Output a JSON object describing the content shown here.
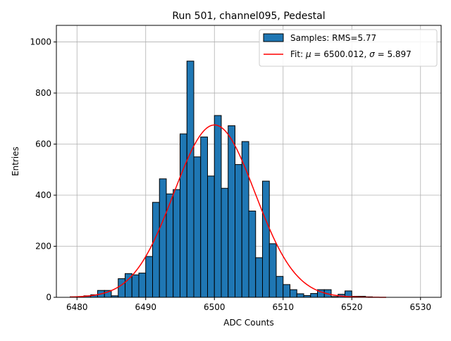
{
  "chart_data": {
    "type": "bar",
    "title": "Run 501, channel095, Pedestal",
    "xlabel": "ADC Counts",
    "ylabel": "Entries",
    "xlim": [
      6477,
      6533
    ],
    "ylim": [
      0,
      1065
    ],
    "xticks": [
      6480,
      6490,
      6500,
      6510,
      6520,
      6530
    ],
    "yticks": [
      0,
      200,
      400,
      600,
      800,
      1000
    ],
    "grid": true,
    "legend_position": "upper right",
    "bin_edges_start": 6479,
    "bin_width": 1,
    "bars": [
      2,
      3,
      6,
      10,
      27,
      27,
      6,
      73,
      93,
      88,
      95,
      160,
      372,
      464,
      405,
      422,
      640,
      925,
      550,
      628,
      475,
      712,
      427,
      672,
      520,
      610,
      338,
      155,
      455,
      210,
      82,
      50,
      30,
      14,
      7,
      15,
      30,
      30,
      3,
      12,
      25,
      4,
      4,
      2
    ],
    "bar_color": "#1f77b4",
    "fit": {
      "mu": 6500.012,
      "sigma": 5.897,
      "amplitude": 675,
      "x_range": [
        6479,
        6525
      ],
      "color": "#ff0000"
    },
    "legend": {
      "samples_label": "Samples: RMS=5.77",
      "fit_label_prefix": "Fit: ",
      "fit_mu_symbol": "μ",
      "fit_mu_value": " = 6500.012, ",
      "fit_sigma_symbol": "σ",
      "fit_sigma_value": " = 5.897"
    }
  }
}
